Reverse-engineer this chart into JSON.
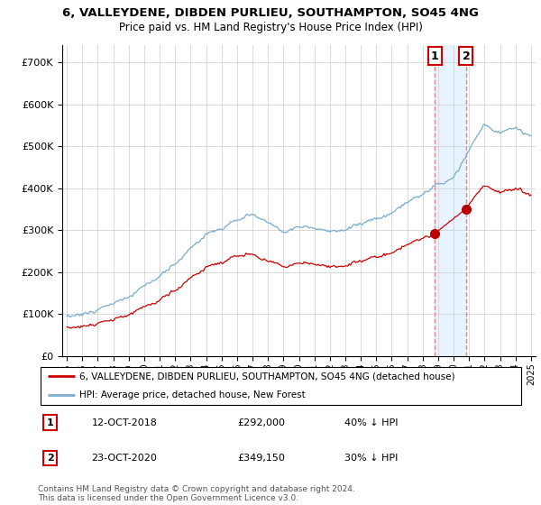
{
  "title_line1": "6, VALLEYDENE, DIBDEN PURLIEU, SOUTHAMPTON, SO45 4NG",
  "title_line2": "Price paid vs. HM Land Registry's House Price Index (HPI)",
  "legend_label_red": "6, VALLEYDENE, DIBDEN PURLIEU, SOUTHAMPTON, SO45 4NG (detached house)",
  "legend_label_blue": "HPI: Average price, detached house, New Forest",
  "annotation1_label": "1",
  "annotation1_date": "12-OCT-2018",
  "annotation1_price": "£292,000",
  "annotation1_hpi": "40% ↓ HPI",
  "annotation1_year": 2018.79,
  "annotation1_value": 292000,
  "annotation2_label": "2",
  "annotation2_date": "23-OCT-2020",
  "annotation2_price": "£349,150",
  "annotation2_hpi": "30% ↓ HPI",
  "annotation2_year": 2020.81,
  "annotation2_value": 349150,
  "yticks": [
    0,
    100000,
    200000,
    300000,
    400000,
    500000,
    600000,
    700000
  ],
  "ylim": [
    0,
    740000
  ],
  "xlim_left": 1994.7,
  "xlim_right": 2025.3,
  "copyright_text": "Contains HM Land Registry data © Crown copyright and database right 2024.\nThis data is licensed under the Open Government Licence v3.0.",
  "red_color": "#cc0000",
  "blue_color": "#7aadcf",
  "shade_color": "#ddeeff",
  "marker_fill": "#bb0000",
  "vline_color": "#dd8888",
  "background_color": "#ffffff",
  "grid_color": "#cccccc"
}
